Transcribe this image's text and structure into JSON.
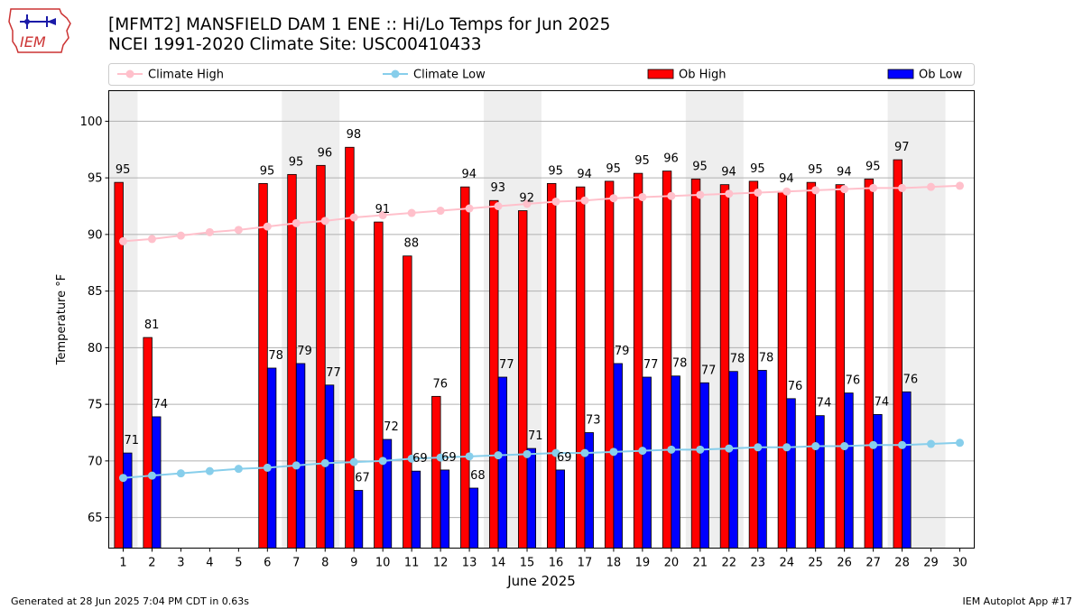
{
  "header": {
    "title_line1": "[MFMT2] MANSFIELD DAM 1 ENE :: Hi/Lo Temps for Jun 2025",
    "title_line2": "NCEI 1991-2020 Climate Site: USC00410433"
  },
  "logo": {
    "text": "IEM"
  },
  "footer": {
    "left": "Generated at 28 Jun 2025 7:04 PM CDT in 0.63s",
    "right": "IEM Autoplot App #17"
  },
  "colors": {
    "ob_high": "#ff0000",
    "ob_low": "#0000ff",
    "climate_high": "#ffc0cb",
    "climate_low": "#87ceeb",
    "weekend_shade": "#eeeeee",
    "grid": "#b0b0b0"
  },
  "chart_data": {
    "type": "bar",
    "title": "[MFMT2] MANSFIELD DAM 1 ENE :: Hi/Lo Temps for Jun 2025",
    "xlabel": "June 2025",
    "ylabel": "Temperature °F",
    "ylim": [
      62.3,
      102.7
    ],
    "xlim": [
      0.5,
      30.5
    ],
    "yticks": [
      65,
      70,
      75,
      80,
      85,
      90,
      95,
      100
    ],
    "categories": [
      1,
      2,
      3,
      4,
      5,
      6,
      7,
      8,
      9,
      10,
      11,
      12,
      13,
      14,
      15,
      16,
      17,
      18,
      19,
      20,
      21,
      22,
      23,
      24,
      25,
      26,
      27,
      28,
      29,
      30
    ],
    "grid": "horizontal",
    "legend_position": "top",
    "weekend_shaded_days": [
      [
        1,
        1
      ],
      [
        7,
        8
      ],
      [
        14,
        15
      ],
      [
        21,
        22
      ],
      [
        28,
        29
      ]
    ],
    "series": [
      {
        "name": "Climate High",
        "type": "line",
        "values": [
          89.4,
          89.6,
          89.9,
          90.2,
          90.4,
          90.7,
          91.0,
          91.2,
          91.5,
          91.7,
          91.9,
          92.1,
          92.3,
          92.5,
          92.7,
          92.9,
          93.0,
          93.2,
          93.3,
          93.4,
          93.5,
          93.6,
          93.7,
          93.8,
          93.9,
          94.0,
          94.1,
          94.1,
          94.2,
          94.3
        ]
      },
      {
        "name": "Climate Low",
        "type": "line",
        "values": [
          68.5,
          68.7,
          68.9,
          69.1,
          69.3,
          69.4,
          69.6,
          69.8,
          69.9,
          70.0,
          70.2,
          70.3,
          70.4,
          70.5,
          70.6,
          70.7,
          70.7,
          70.8,
          70.9,
          71.0,
          71.0,
          71.1,
          71.2,
          71.2,
          71.3,
          71.3,
          71.4,
          71.4,
          71.5,
          71.6
        ]
      },
      {
        "name": "Ob High",
        "type": "bar",
        "values": [
          95,
          81,
          null,
          null,
          null,
          95,
          95,
          96,
          98,
          91,
          88,
          76,
          94,
          93,
          92,
          95,
          94,
          95,
          95,
          96,
          95,
          94,
          95,
          94,
          95,
          94,
          95,
          97,
          null,
          null
        ],
        "bar_values": [
          94.6,
          80.9,
          null,
          null,
          null,
          94.5,
          95.3,
          96.1,
          97.7,
          91.1,
          88.1,
          75.7,
          94.2,
          93.0,
          92.1,
          94.5,
          94.2,
          94.7,
          95.4,
          95.6,
          94.9,
          94.4,
          94.7,
          93.8,
          94.6,
          94.4,
          94.9,
          96.6,
          null,
          null
        ]
      },
      {
        "name": "Ob Low",
        "type": "bar",
        "values": [
          71,
          74,
          null,
          null,
          null,
          78,
          79,
          77,
          67,
          72,
          69,
          69,
          68,
          77,
          71,
          69,
          73,
          79,
          77,
          78,
          77,
          78,
          78,
          76,
          74,
          76,
          74,
          76,
          null,
          null
        ],
        "bar_values": [
          70.7,
          73.9,
          null,
          null,
          null,
          78.2,
          78.6,
          76.7,
          67.4,
          71.9,
          69.1,
          69.2,
          67.6,
          77.4,
          71.1,
          69.2,
          72.5,
          78.6,
          77.4,
          77.5,
          76.9,
          77.9,
          78.0,
          75.5,
          74.0,
          76.0,
          74.1,
          76.1,
          null,
          null
        ]
      }
    ]
  }
}
